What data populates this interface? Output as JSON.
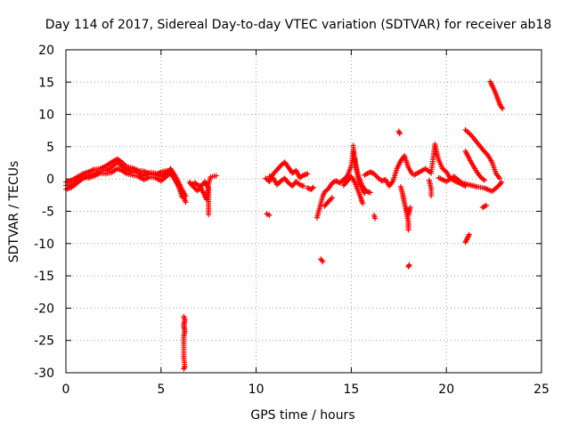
{
  "chart_data": {
    "type": "scatter",
    "title": "Day 114 of 2017, Sidereal Day-to-day VTEC variation (SDTVAR) for receiver ab18",
    "xlabel": "GPS time / hours",
    "ylabel": "SDTVAR / TECUs",
    "xlim": [
      0,
      25
    ],
    "ylim": [
      -30,
      20
    ],
    "x_ticks": [
      0,
      5,
      10,
      15,
      20,
      25
    ],
    "x_tick_labels": [
      "0",
      "5",
      "10",
      "15",
      "20",
      "25"
    ],
    "y_ticks": [
      20,
      15,
      10,
      5,
      0,
      -5,
      -10,
      -15,
      -20,
      -25,
      -30
    ],
    "y_tick_labels": [
      "20",
      "15",
      "10",
      "5",
      "0",
      "-5",
      "-10",
      "-15",
      "-20",
      "-25",
      "-30"
    ],
    "grid": true,
    "marker": "+",
    "color": "#ff0000",
    "series": [
      {
        "name": "SDTVAR",
        "segments": [
          [
            [
              0.0,
              -1.6
            ],
            [
              0.3,
              -1.3
            ],
            [
              0.6,
              -0.6
            ],
            [
              0.9,
              0.1
            ],
            [
              1.2,
              0.5
            ],
            [
              1.5,
              0.8
            ],
            [
              1.8,
              1.2
            ],
            [
              2.1,
              1.3
            ],
            [
              2.4,
              1.8
            ],
            [
              2.7,
              2.6
            ],
            [
              2.9,
              2.1
            ],
            [
              3.2,
              1.4
            ],
            [
              3.5,
              1.1
            ],
            [
              3.8,
              0.9
            ],
            [
              4.1,
              0.5
            ],
            [
              4.4,
              1.0
            ],
            [
              4.7,
              0.9
            ],
            [
              5.0,
              0.4
            ],
            [
              5.3,
              0.9
            ],
            [
              5.5,
              1.6
            ],
            [
              5.7,
              0.7
            ],
            [
              5.9,
              -0.4
            ],
            [
              6.1,
              -1.6
            ],
            [
              6.3,
              -2.7
            ]
          ],
          [
            [
              0.0,
              -0.5
            ],
            [
              0.3,
              -0.2
            ],
            [
              0.6,
              0.3
            ],
            [
              0.9,
              0.8
            ],
            [
              1.2,
              1.1
            ],
            [
              1.5,
              1.5
            ],
            [
              1.8,
              1.6
            ],
            [
              2.1,
              2.0
            ],
            [
              2.4,
              2.6
            ],
            [
              2.7,
              3.1
            ],
            [
              2.9,
              2.7
            ],
            [
              3.2,
              1.9
            ],
            [
              3.5,
              1.7
            ],
            [
              3.8,
              1.3
            ],
            [
              4.1,
              1.2
            ],
            [
              4.4,
              0.8
            ],
            [
              4.7,
              0.6
            ],
            [
              5.0,
              1.1
            ],
            [
              5.3,
              1.3
            ],
            [
              5.5,
              0.8
            ],
            [
              5.7,
              0.2
            ],
            [
              5.9,
              -1.0
            ],
            [
              6.1,
              -2.2
            ],
            [
              6.3,
              -3.6
            ]
          ],
          [
            [
              0.0,
              -1.0
            ],
            [
              0.3,
              -0.9
            ],
            [
              0.6,
              -0.2
            ],
            [
              0.9,
              0.3
            ],
            [
              1.2,
              0.2
            ],
            [
              1.5,
              0.5
            ],
            [
              1.8,
              0.9
            ],
            [
              2.1,
              0.8
            ],
            [
              2.4,
              1.0
            ],
            [
              2.7,
              1.6
            ],
            [
              2.9,
              1.4
            ],
            [
              3.2,
              0.8
            ],
            [
              3.5,
              0.6
            ],
            [
              3.8,
              0.4
            ],
            [
              4.1,
              -0.1
            ],
            [
              4.4,
              0.3
            ],
            [
              4.7,
              0.2
            ],
            [
              5.0,
              -0.3
            ],
            [
              5.3,
              0.4
            ],
            [
              5.5,
              1.0
            ],
            [
              5.7,
              0.0
            ],
            [
              5.9,
              -0.9
            ],
            [
              6.1,
              -2.8
            ]
          ],
          [
            [
              6.5,
              -0.5
            ],
            [
              6.7,
              -1.2
            ],
            [
              6.9,
              -1.8
            ],
            [
              7.1,
              -1.4
            ],
            [
              7.3,
              -2.6
            ],
            [
              7.4,
              -3.2
            ],
            [
              7.5,
              -0.8
            ],
            [
              7.6,
              0.3
            ],
            [
              7.9,
              0.5
            ]
          ],
          [
            [
              6.6,
              -0.9
            ],
            [
              6.8,
              -0.6
            ],
            [
              7.0,
              -1.1
            ],
            [
              7.2,
              -0.9
            ],
            [
              7.3,
              -0.4
            ],
            [
              7.5,
              -1.5
            ],
            [
              7.5,
              -5.5
            ]
          ],
          [
            [
              6.2,
              -21.3
            ],
            [
              6.25,
              -21.8
            ],
            [
              6.2,
              -22.7
            ],
            [
              6.25,
              -23.6
            ],
            [
              6.2,
              -24.3
            ],
            [
              6.2,
              -27.8
            ],
            [
              6.25,
              -29.0
            ],
            [
              6.2,
              -29.4
            ]
          ],
          [
            [
              10.5,
              0.1
            ],
            [
              10.7,
              -0.4
            ],
            [
              10.9,
              0.8
            ],
            [
              11.1,
              1.4
            ],
            [
              11.3,
              2.1
            ],
            [
              11.5,
              2.6
            ],
            [
              11.7,
              1.8
            ],
            [
              11.9,
              0.9
            ],
            [
              12.1,
              1.3
            ],
            [
              12.3,
              0.2
            ],
            [
              12.5,
              0.6
            ],
            [
              12.7,
              0.8
            ]
          ],
          [
            [
              10.7,
              0.4
            ],
            [
              10.9,
              0.1
            ],
            [
              11.1,
              -0.9
            ],
            [
              11.3,
              -0.3
            ],
            [
              11.5,
              0.1
            ],
            [
              11.7,
              -0.6
            ],
            [
              11.9,
              -1.1
            ],
            [
              12.1,
              -0.4
            ],
            [
              12.3,
              -0.9
            ],
            [
              12.5,
              -1.1
            ]
          ],
          [
            [
              10.55,
              -5.4
            ],
            [
              10.7,
              -5.6
            ]
          ],
          [
            [
              12.7,
              -1.4
            ],
            [
              12.9,
              -1.6
            ],
            [
              13.0,
              -1.3
            ]
          ],
          [
            [
              13.2,
              -6.0
            ],
            [
              13.3,
              -4.9
            ],
            [
              13.4,
              -3.8
            ],
            [
              13.5,
              -2.7
            ],
            [
              13.6,
              -2.0
            ],
            [
              13.8,
              -1.5
            ],
            [
              14.0,
              -0.6
            ],
            [
              14.2,
              -0.3
            ],
            [
              14.4,
              -0.6
            ],
            [
              14.6,
              -0.1
            ],
            [
              14.8,
              0.5
            ],
            [
              15.0,
              2.0
            ],
            [
              15.1,
              4.2
            ],
            [
              15.2,
              3.0
            ],
            [
              15.3,
              1.2
            ],
            [
              15.4,
              -0.4
            ],
            [
              15.6,
              -1.6
            ],
            [
              15.7,
              -2.2
            ]
          ],
          [
            [
              13.4,
              -12.4
            ],
            [
              13.5,
              -12.8
            ]
          ],
          [
            [
              13.6,
              -4.2
            ],
            [
              13.8,
              -3.5
            ],
            [
              14.0,
              -2.9
            ]
          ],
          [
            [
              14.6,
              -1.0
            ],
            [
              14.8,
              -0.3
            ],
            [
              15.0,
              0.4
            ],
            [
              15.2,
              -0.6
            ],
            [
              15.5,
              -2.9
            ],
            [
              15.6,
              -3.8
            ]
          ],
          [
            [
              15.1,
              5.2
            ],
            [
              15.2,
              2.3
            ],
            [
              15.4,
              0.2
            ],
            [
              15.6,
              -1.2
            ],
            [
              15.8,
              -1.9
            ],
            [
              16.0,
              -2.1
            ]
          ],
          [
            [
              15.7,
              0.6
            ],
            [
              16.0,
              1.1
            ],
            [
              16.2,
              0.8
            ],
            [
              16.4,
              0.2
            ],
            [
              16.6,
              -0.3
            ],
            [
              16.8,
              -0.1
            ],
            [
              17.0,
              -1.1
            ],
            [
              17.2,
              -0.3
            ],
            [
              17.4,
              1.6
            ],
            [
              17.6,
              2.8
            ],
            [
              17.8,
              3.6
            ],
            [
              18.0,
              1.8
            ],
            [
              18.2,
              0.8
            ]
          ],
          [
            [
              16.2,
              -5.6
            ],
            [
              16.25,
              -6.1
            ]
          ],
          [
            [
              17.5,
              7.4
            ],
            [
              17.55,
              7.0
            ]
          ],
          [
            [
              17.6,
              -1.2
            ],
            [
              17.7,
              -2.3
            ],
            [
              17.8,
              -3.8
            ],
            [
              17.9,
              -5.1
            ],
            [
              18.0,
              -6.6
            ],
            [
              18.0,
              -7.9
            ]
          ],
          [
            [
              17.9,
              -4.6
            ],
            [
              18.0,
              -5.6
            ],
            [
              18.1,
              -4.4
            ]
          ],
          [
            [
              18.0,
              -13.6
            ],
            [
              18.05,
              -13.3
            ]
          ],
          [
            [
              18.3,
              0.6
            ],
            [
              18.6,
              1.1
            ],
            [
              18.9,
              1.6
            ],
            [
              19.2,
              0.9
            ],
            [
              19.4,
              5.4
            ],
            [
              19.5,
              4.0
            ],
            [
              19.6,
              2.9
            ],
            [
              19.8,
              1.6
            ],
            [
              20.0,
              1.1
            ],
            [
              20.2,
              0.1
            ],
            [
              20.5,
              -0.4
            ],
            [
              20.8,
              -0.8
            ],
            [
              21.0,
              -1.1
            ]
          ],
          [
            [
              19.1,
              -0.2
            ],
            [
              19.2,
              -1.5
            ],
            [
              19.2,
              -2.6
            ]
          ],
          [
            [
              19.6,
              0.2
            ],
            [
              20.0,
              -0.4
            ],
            [
              20.4,
              0.4
            ],
            [
              20.8,
              -0.6
            ],
            [
              21.2,
              -0.9
            ],
            [
              21.6,
              -1.2
            ],
            [
              22.0,
              -1.4
            ],
            [
              22.4,
              -1.9
            ],
            [
              22.7,
              -1.2
            ],
            [
              22.9,
              -0.5
            ]
          ],
          [
            [
              21.0,
              7.6
            ],
            [
              21.3,
              6.8
            ],
            [
              21.6,
              5.7
            ],
            [
              21.9,
              4.6
            ],
            [
              22.2,
              3.6
            ],
            [
              22.4,
              2.6
            ],
            [
              22.6,
              0.9
            ],
            [
              22.8,
              0.1
            ]
          ],
          [
            [
              21.0,
              4.3
            ],
            [
              21.3,
              2.6
            ],
            [
              21.6,
              1.1
            ],
            [
              21.8,
              0.3
            ],
            [
              22.0,
              -0.2
            ]
          ],
          [
            [
              21.0,
              -9.8
            ],
            [
              21.1,
              -9.2
            ],
            [
              21.2,
              -8.6
            ]
          ],
          [
            [
              21.9,
              -4.4
            ],
            [
              22.1,
              -4.1
            ]
          ],
          [
            [
              22.3,
              15.1
            ],
            [
              22.45,
              14.2
            ],
            [
              22.6,
              13.2
            ],
            [
              22.75,
              12.0
            ],
            [
              22.85,
              11.3
            ],
            [
              22.95,
              10.9
            ]
          ]
        ]
      }
    ]
  }
}
